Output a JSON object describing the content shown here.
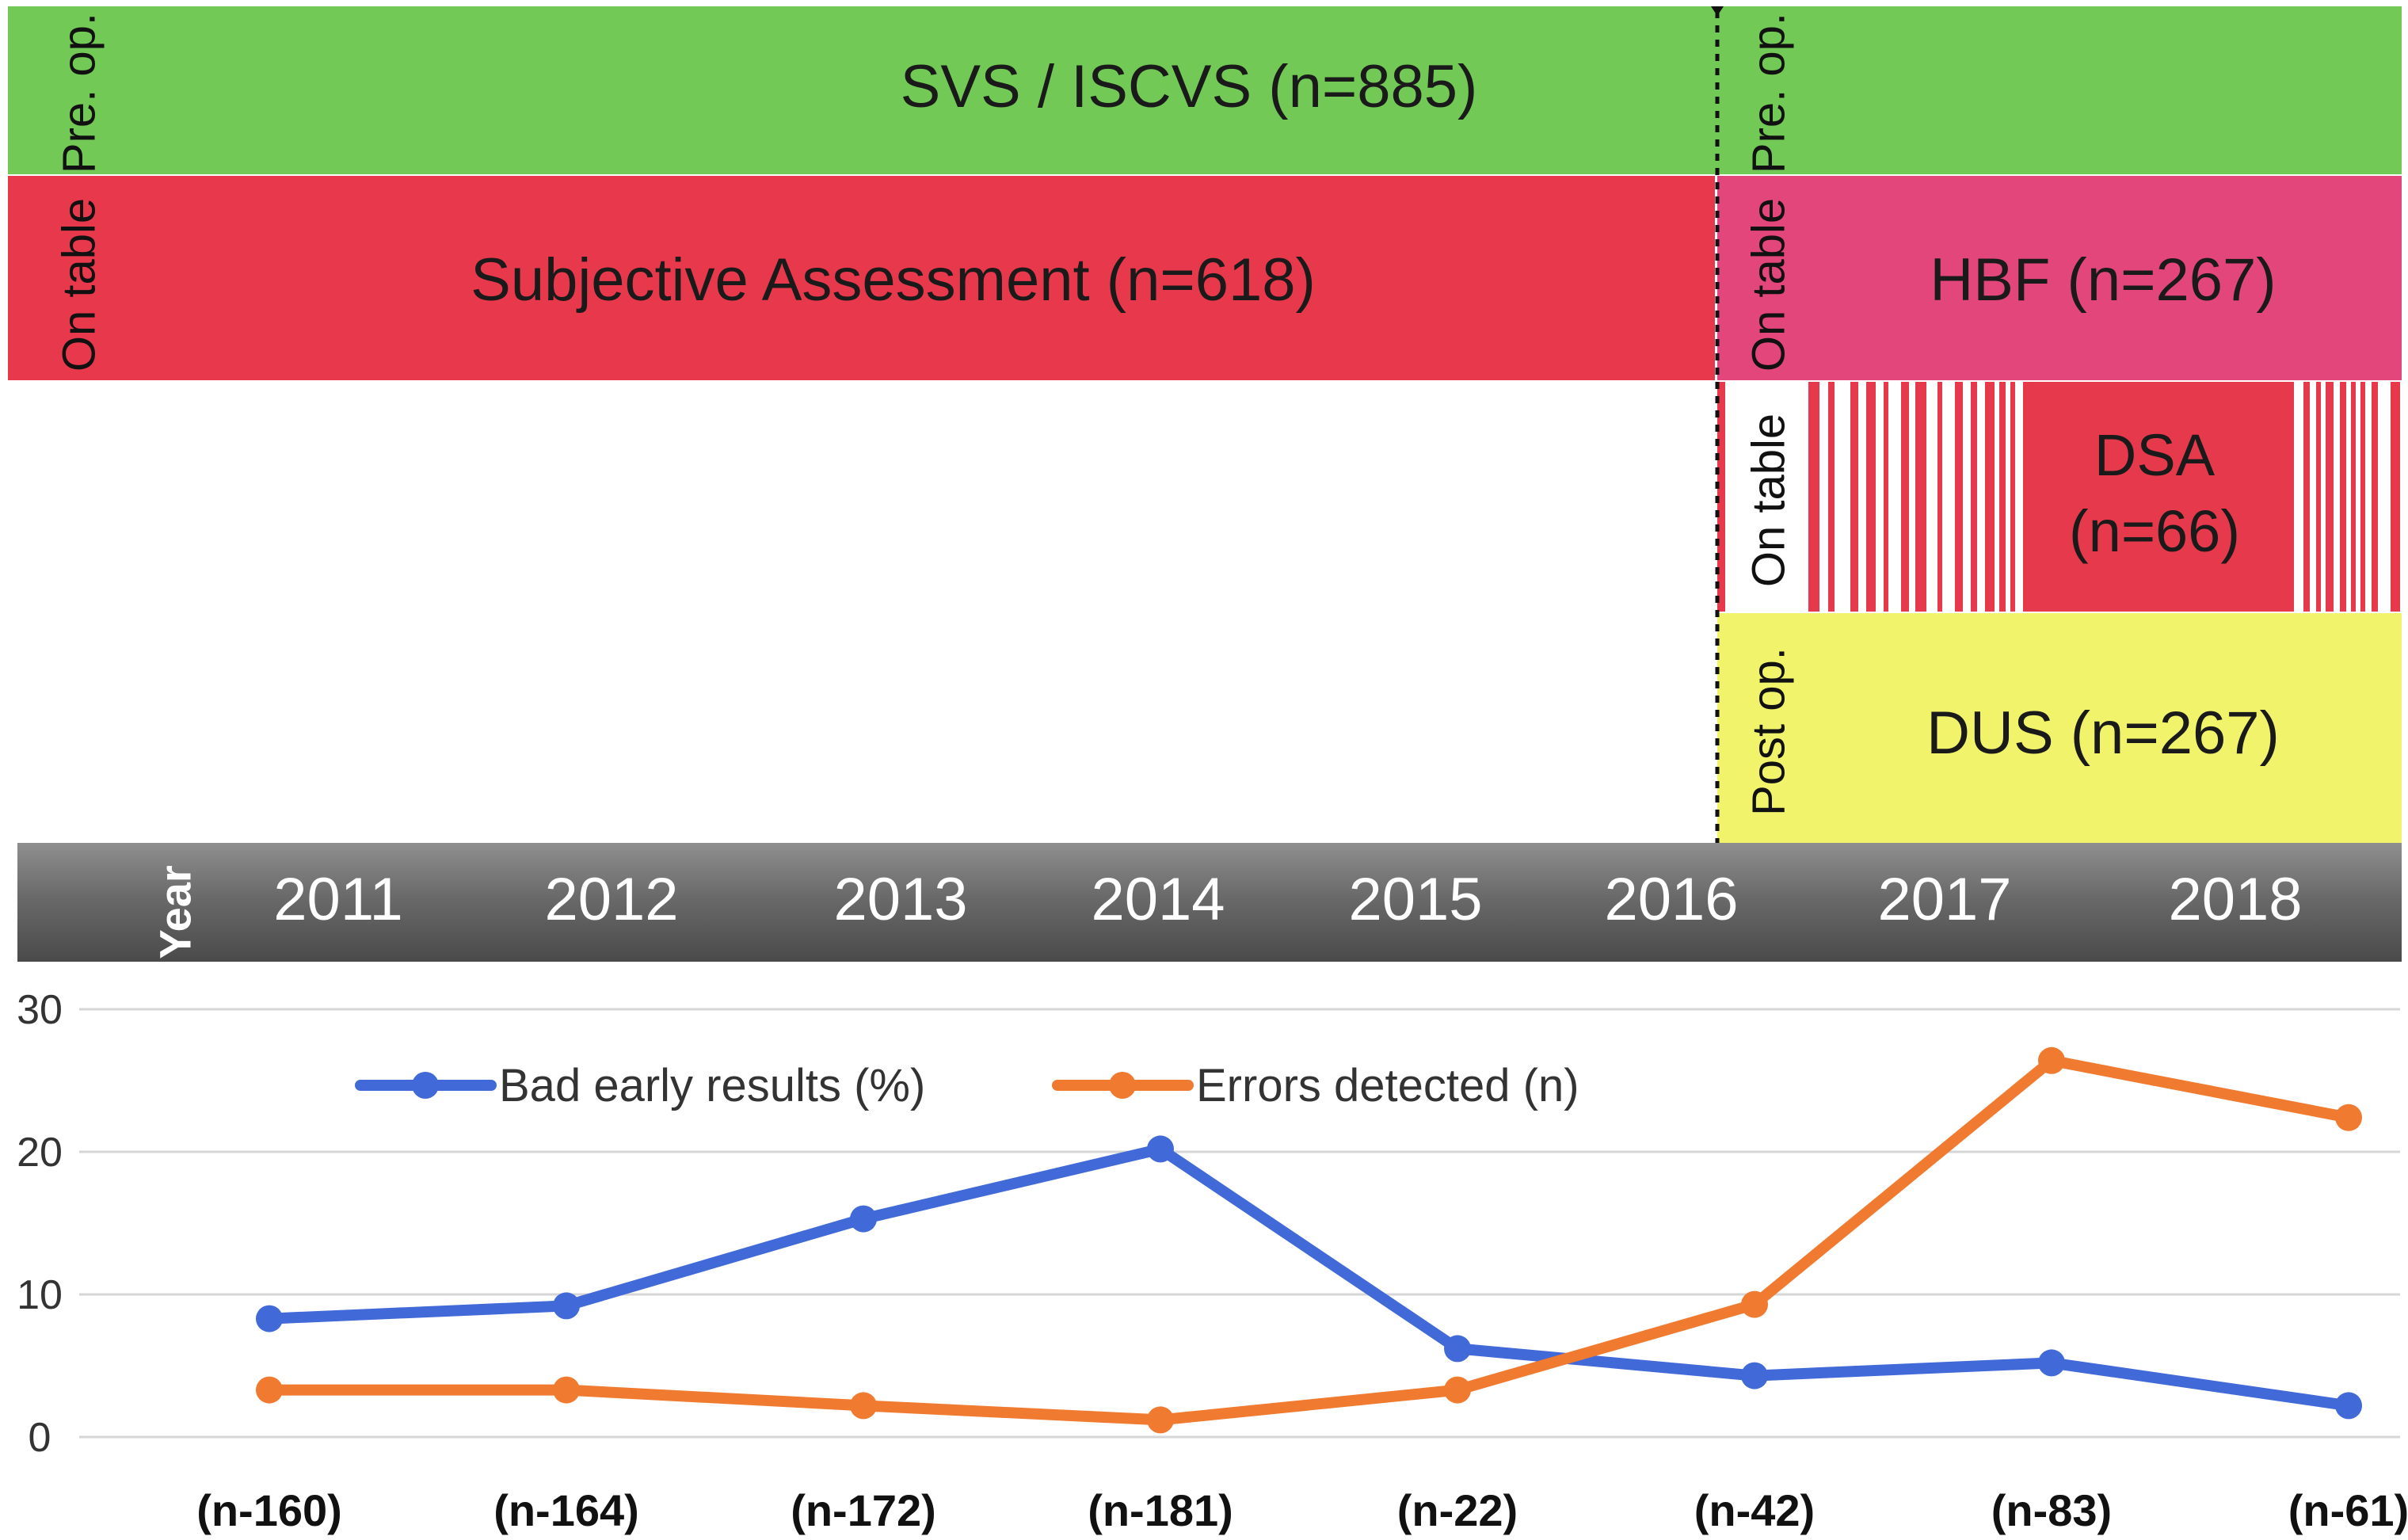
{
  "timeline": {
    "band_pre_op": {
      "text": "SVS / ISCVS (n=885)",
      "label_left": "Pre. op.",
      "label_right": "Pre. op.",
      "color": "#72c956"
    },
    "band_on_table_1": {
      "text_left": "Subjective Assessment (n=618)",
      "text_right": "HBF (n=267)",
      "label_left": "On table",
      "label_right": "On table",
      "color_left": "#e8394c",
      "color_right": "#e2467a"
    },
    "band_on_table_2": {
      "text_line1": "DSA",
      "text_line2": "(n=66)",
      "label": "On table",
      "color": "#e63a4c"
    },
    "band_post_op": {
      "text": "DUS (n=267)",
      "label": "Post op.",
      "color": "#f1f36b"
    },
    "year_label": "Year",
    "years": [
      "2011",
      "2012",
      "2013",
      "2014",
      "2015",
      "2016",
      "2017",
      "2018"
    ]
  },
  "chart_data": {
    "type": "line",
    "categories": [
      "(n-160)",
      "(n-164)",
      "(n-172)",
      "(n-181)",
      "(n-22)",
      "(n-42)",
      "(n-83)",
      "(n-61)"
    ],
    "series": [
      {
        "name": "Bad early results (%)",
        "color": "#4169d8",
        "values": [
          8.3,
          9.2,
          15.3,
          20.2,
          6.2,
          4.3,
          5.2,
          2.2
        ]
      },
      {
        "name": "Errors detected (n)",
        "color": "#f07a2f",
        "values": [
          3.3,
          3.3,
          2.2,
          1.2,
          3.3,
          9.3,
          26.4,
          22.4
        ]
      }
    ],
    "ylim": [
      0,
      30
    ],
    "yticks": [
      "0",
      "10",
      "20",
      "30"
    ],
    "grid": true,
    "legend": "top"
  }
}
